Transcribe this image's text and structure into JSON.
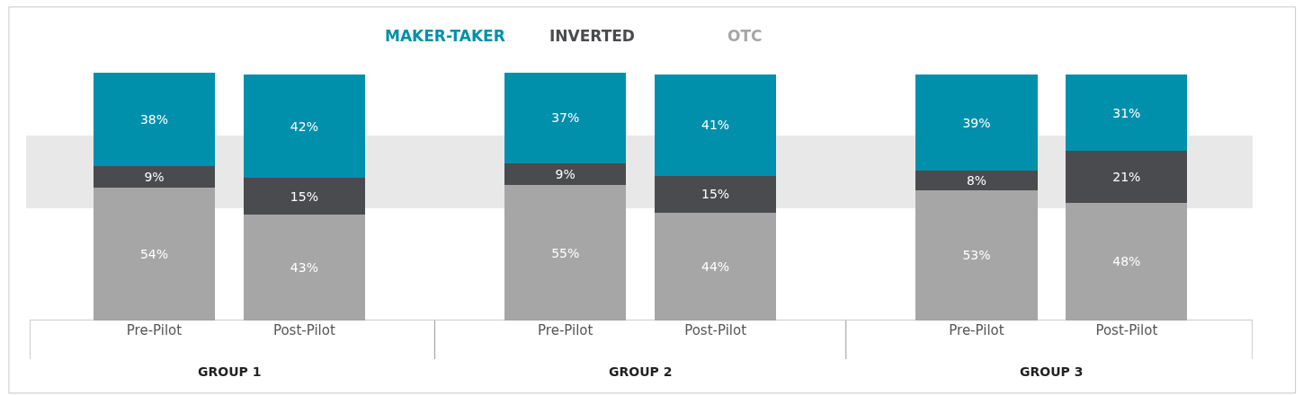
{
  "chart_data": {
    "type": "bar",
    "stacked": true,
    "legend": "top",
    "categories": [
      "Pre-Pilot",
      "Post-Pilot",
      "Pre-Pilot",
      "Post-Pilot",
      "Pre-Pilot",
      "Post-Pilot"
    ],
    "series": [
      {
        "name": "OTC",
        "color": "#a6a6a6",
        "values": [
          54,
          43,
          55,
          44,
          53,
          48
        ],
        "value_labels": [
          "54%",
          "43%",
          "55%",
          "44%",
          "53%",
          "48%"
        ]
      },
      {
        "name": "INVERTED",
        "color": "#4a4b4f",
        "values": [
          9,
          15,
          9,
          15,
          8,
          21
        ],
        "value_labels": [
          "9%",
          "15%",
          "9%",
          "15%",
          "8%",
          "21%"
        ]
      },
      {
        "name": "MAKER-TAKER",
        "color": "#0090ab",
        "values": [
          38,
          42,
          37,
          41,
          39,
          31
        ],
        "value_labels": [
          "38%",
          "42%",
          "37%",
          "41%",
          "39%",
          "31%"
        ]
      }
    ],
    "annotations": [
      "GROUP 1",
      "GROUP 2",
      "GROUP 3"
    ]
  }
}
